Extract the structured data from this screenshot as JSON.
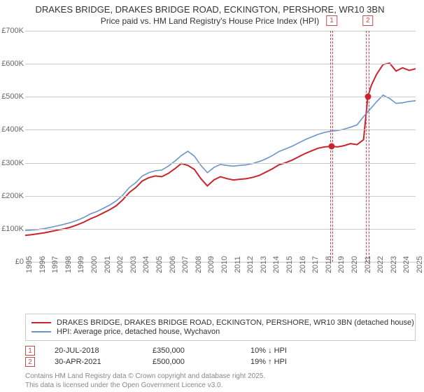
{
  "title": {
    "line1": "DRAKES BRIDGE, DRAKES BRIDGE ROAD, ECKINGTON, PERSHORE, WR10 3BN",
    "line2": "Price paid vs. HM Land Registry's House Price Index (HPI)"
  },
  "chart": {
    "type": "line",
    "background_color": "#ffffff",
    "grid_color": "#cccccc",
    "x": {
      "min": 1995,
      "max": 2025,
      "ticks": [
        1995,
        1996,
        1997,
        1998,
        1999,
        2000,
        2001,
        2002,
        2003,
        2004,
        2005,
        2006,
        2007,
        2008,
        2009,
        2010,
        2011,
        2012,
        2013,
        2014,
        2015,
        2016,
        2017,
        2018,
        2019,
        2020,
        2021,
        2022,
        2023,
        2024,
        2025
      ],
      "label_fontsize": 11,
      "label_color": "#666666"
    },
    "y": {
      "min": 0,
      "max": 700000,
      "ticks": [
        0,
        100000,
        200000,
        300000,
        400000,
        500000,
        600000,
        700000
      ],
      "tick_labels": [
        "£0",
        "£100K",
        "£200K",
        "£300K",
        "£400K",
        "£500K",
        "£600K",
        "£700K"
      ],
      "label_fontsize": 11,
      "label_color": "#666666"
    },
    "marker_bands": [
      {
        "id": "1",
        "x": 2018.55,
        "width_years": 0.25,
        "top_offset": -22
      },
      {
        "id": "2",
        "x": 2021.33,
        "width_years": 0.25,
        "top_offset": -22
      }
    ],
    "sale_points": [
      {
        "x": 2018.55,
        "y": 350000,
        "color": "#c9252c"
      },
      {
        "x": 2021.33,
        "y": 500000,
        "color": "#c9252c"
      }
    ],
    "series": [
      {
        "name": "property",
        "color": "#c9252c",
        "width": 2.0,
        "label": "DRAKES BRIDGE, DRAKES BRIDGE ROAD, ECKINGTON, PERSHORE, WR10 3BN (detached house)",
        "points": [
          [
            1995,
            80000
          ],
          [
            1995.5,
            82000
          ],
          [
            1996,
            85000
          ],
          [
            1996.5,
            88000
          ],
          [
            1997,
            92000
          ],
          [
            1997.5,
            96000
          ],
          [
            1998,
            100000
          ],
          [
            1998.5,
            105000
          ],
          [
            1999,
            112000
          ],
          [
            1999.5,
            120000
          ],
          [
            2000,
            130000
          ],
          [
            2000.5,
            138000
          ],
          [
            2001,
            148000
          ],
          [
            2001.5,
            158000
          ],
          [
            2002,
            170000
          ],
          [
            2002.5,
            188000
          ],
          [
            2003,
            210000
          ],
          [
            2003.5,
            225000
          ],
          [
            2004,
            245000
          ],
          [
            2004.5,
            255000
          ],
          [
            2005,
            260000
          ],
          [
            2005.5,
            258000
          ],
          [
            2006,
            268000
          ],
          [
            2006.5,
            282000
          ],
          [
            2007,
            298000
          ],
          [
            2007.5,
            292000
          ],
          [
            2008,
            280000
          ],
          [
            2008.5,
            252000
          ],
          [
            2009,
            230000
          ],
          [
            2009.5,
            248000
          ],
          [
            2010,
            258000
          ],
          [
            2010.5,
            252000
          ],
          [
            2011,
            248000
          ],
          [
            2011.5,
            250000
          ],
          [
            2012,
            252000
          ],
          [
            2012.5,
            256000
          ],
          [
            2013,
            262000
          ],
          [
            2013.5,
            272000
          ],
          [
            2014,
            282000
          ],
          [
            2014.5,
            294000
          ],
          [
            2015,
            300000
          ],
          [
            2015.5,
            308000
          ],
          [
            2016,
            318000
          ],
          [
            2016.5,
            328000
          ],
          [
            2017,
            336000
          ],
          [
            2017.5,
            344000
          ],
          [
            2018,
            348000
          ],
          [
            2018.55,
            350000
          ],
          [
            2019,
            348000
          ],
          [
            2019.5,
            352000
          ],
          [
            2020,
            358000
          ],
          [
            2020.5,
            355000
          ],
          [
            2021,
            370000
          ],
          [
            2021.33,
            500000
          ],
          [
            2021.6,
            535000
          ],
          [
            2022,
            568000
          ],
          [
            2022.5,
            598000
          ],
          [
            2023,
            602000
          ],
          [
            2023.5,
            578000
          ],
          [
            2024,
            588000
          ],
          [
            2024.5,
            580000
          ],
          [
            2025,
            585000
          ]
        ]
      },
      {
        "name": "hpi",
        "color": "#6b95c9",
        "width": 1.6,
        "label": "HPI: Average price, detached house, Wychavon",
        "points": [
          [
            1995,
            95000
          ],
          [
            1995.5,
            96000
          ],
          [
            1996,
            98000
          ],
          [
            1996.5,
            101000
          ],
          [
            1997,
            105000
          ],
          [
            1997.5,
            109000
          ],
          [
            1998,
            114000
          ],
          [
            1998.5,
            119000
          ],
          [
            1999,
            126000
          ],
          [
            1999.5,
            134000
          ],
          [
            2000,
            145000
          ],
          [
            2000.5,
            152000
          ],
          [
            2001,
            162000
          ],
          [
            2001.5,
            172000
          ],
          [
            2002,
            185000
          ],
          [
            2002.5,
            202000
          ],
          [
            2003,
            225000
          ],
          [
            2003.5,
            240000
          ],
          [
            2004,
            260000
          ],
          [
            2004.5,
            270000
          ],
          [
            2005,
            276000
          ],
          [
            2005.5,
            278000
          ],
          [
            2006,
            290000
          ],
          [
            2006.5,
            305000
          ],
          [
            2007,
            322000
          ],
          [
            2007.5,
            335000
          ],
          [
            2008,
            320000
          ],
          [
            2008.5,
            292000
          ],
          [
            2009,
            270000
          ],
          [
            2009.5,
            286000
          ],
          [
            2010,
            295000
          ],
          [
            2010.5,
            292000
          ],
          [
            2011,
            290000
          ],
          [
            2011.5,
            292000
          ],
          [
            2012,
            294000
          ],
          [
            2012.5,
            298000
          ],
          [
            2013,
            304000
          ],
          [
            2013.5,
            312000
          ],
          [
            2014,
            322000
          ],
          [
            2014.5,
            334000
          ],
          [
            2015,
            342000
          ],
          [
            2015.5,
            350000
          ],
          [
            2016,
            360000
          ],
          [
            2016.5,
            370000
          ],
          [
            2017,
            378000
          ],
          [
            2017.5,
            386000
          ],
          [
            2018,
            392000
          ],
          [
            2018.5,
            396000
          ],
          [
            2019,
            398000
          ],
          [
            2019.5,
            402000
          ],
          [
            2020,
            408000
          ],
          [
            2020.5,
            415000
          ],
          [
            2021,
            440000
          ],
          [
            2021.5,
            462000
          ],
          [
            2022,
            485000
          ],
          [
            2022.5,
            505000
          ],
          [
            2023,
            495000
          ],
          [
            2023.5,
            480000
          ],
          [
            2024,
            482000
          ],
          [
            2024.5,
            486000
          ],
          [
            2025,
            488000
          ]
        ]
      }
    ]
  },
  "legend": {
    "border_color": "#cccccc",
    "fontsize": 11
  },
  "sales": [
    {
      "marker": "1",
      "date": "20-JUL-2018",
      "price": "£350,000",
      "delta": "10% ↓ HPI"
    },
    {
      "marker": "2",
      "date": "30-APR-2021",
      "price": "£500,000",
      "delta": "19% ↑ HPI"
    }
  ],
  "attribution": {
    "line1": "Contains HM Land Registry data © Crown copyright and database right 2025.",
    "line2": "This data is licensed under the Open Government Licence v3.0."
  }
}
